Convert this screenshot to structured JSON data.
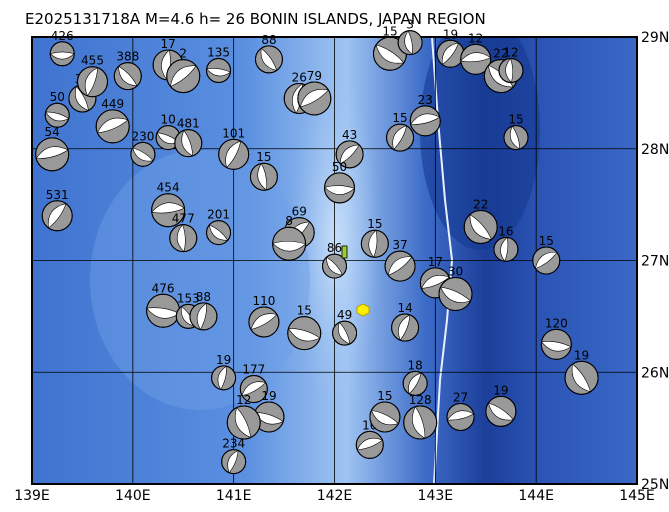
{
  "header": {
    "title": "E2025131718A M=4.6 h= 26 BONIN ISLANDS, JAPAN REGION"
  },
  "map": {
    "xlim": [
      139,
      145
    ],
    "ylim": [
      25,
      29
    ],
    "xticks": [
      {
        "value": 139,
        "label": "139E"
      },
      {
        "value": 140,
        "label": "140E"
      },
      {
        "value": 141,
        "label": "141E"
      },
      {
        "value": 142,
        "label": "142E"
      },
      {
        "value": 143,
        "label": "143E"
      },
      {
        "value": 144,
        "label": "144E"
      },
      {
        "value": 145,
        "label": "145E"
      }
    ],
    "yticks": [
      {
        "value": 25,
        "label": "25N"
      },
      {
        "value": 26,
        "label": "26N"
      },
      {
        "value": 27,
        "label": "27N"
      },
      {
        "value": 28,
        "label": "28N"
      },
      {
        "value": 29,
        "label": "29N"
      }
    ],
    "events": [
      {
        "lon": 139.3,
        "lat": 28.85,
        "label": "426"
      },
      {
        "lon": 139.95,
        "lat": 28.65,
        "label": "388"
      },
      {
        "lon": 140.35,
        "lat": 28.75,
        "label": "17"
      },
      {
        "lon": 140.5,
        "lat": 28.65,
        "label": "2"
      },
      {
        "lon": 140.85,
        "lat": 28.7,
        "label": "135"
      },
      {
        "lon": 141.35,
        "lat": 28.8,
        "label": "88"
      },
      {
        "lon": 141.65,
        "lat": 28.45,
        "label": "26"
      },
      {
        "lon": 141.8,
        "lat": 28.45,
        "label": "79"
      },
      {
        "lon": 139.25,
        "lat": 28.3,
        "label": "50"
      },
      {
        "lon": 139.5,
        "lat": 28.45,
        "label": "38"
      },
      {
        "lon": 139.6,
        "lat": 28.6,
        "label": "455"
      },
      {
        "lon": 139.8,
        "lat": 28.2,
        "label": "449"
      },
      {
        "lon": 140.35,
        "lat": 28.1,
        "label": "10"
      },
      {
        "lon": 140.55,
        "lat": 28.05,
        "label": "481"
      },
      {
        "lon": 141.0,
        "lat": 27.95,
        "label": "101"
      },
      {
        "lon": 139.2,
        "lat": 27.95,
        "label": "54"
      },
      {
        "lon": 140.1,
        "lat": 27.95,
        "label": "230"
      },
      {
        "lon": 141.3,
        "lat": 27.75,
        "label": "15"
      },
      {
        "lon": 139.25,
        "lat": 27.4,
        "label": "531"
      },
      {
        "lon": 140.35,
        "lat": 27.45,
        "label": "454"
      },
      {
        "lon": 140.85,
        "lat": 27.25,
        "label": "201"
      },
      {
        "lon": 140.5,
        "lat": 27.2,
        "label": "477"
      },
      {
        "lon": 141.65,
        "lat": 27.25,
        "label": "69"
      },
      {
        "lon": 141.55,
        "lat": 27.15,
        "label": "8"
      },
      {
        "lon": 142.0,
        "lat": 26.95,
        "label": "86"
      },
      {
        "lon": 142.4,
        "lat": 27.15,
        "label": "15"
      },
      {
        "lon": 142.65,
        "lat": 26.95,
        "label": "37"
      },
      {
        "lon": 140.3,
        "lat": 26.55,
        "label": "476"
      },
      {
        "lon": 140.55,
        "lat": 26.5,
        "label": "153"
      },
      {
        "lon": 140.7,
        "lat": 26.5,
        "label": "88"
      },
      {
        "lon": 141.3,
        "lat": 26.45,
        "label": "110"
      },
      {
        "lon": 141.7,
        "lat": 26.35,
        "label": "15"
      },
      {
        "lon": 142.1,
        "lat": 26.35,
        "label": "49"
      },
      {
        "lon": 142.7,
        "lat": 26.4,
        "label": "14"
      },
      {
        "lon": 143.0,
        "lat": 26.8,
        "label": "17"
      },
      {
        "lon": 143.2,
        "lat": 26.7,
        "label": "30"
      },
      {
        "lon": 143.8,
        "lat": 28.1,
        "label": "15"
      },
      {
        "lon": 142.65,
        "lat": 28.1,
        "label": "15"
      },
      {
        "lon": 142.9,
        "lat": 28.25,
        "label": "23"
      },
      {
        "lon": 142.55,
        "lat": 28.85,
        "label": "15"
      },
      {
        "lon": 142.75,
        "lat": 28.95,
        "label": "3"
      },
      {
        "lon": 143.15,
        "lat": 28.85,
        "label": "19"
      },
      {
        "lon": 143.4,
        "lat": 28.8,
        "label": "12"
      },
      {
        "lon": 143.65,
        "lat": 28.65,
        "label": "22"
      },
      {
        "lon": 143.75,
        "lat": 28.7,
        "label": "12"
      },
      {
        "lon": 142.15,
        "lat": 27.95,
        "label": "43"
      },
      {
        "lon": 142.05,
        "lat": 27.65,
        "label": "50"
      },
      {
        "lon": 143.45,
        "lat": 27.3,
        "label": "22"
      },
      {
        "lon": 143.7,
        "lat": 27.1,
        "label": "16"
      },
      {
        "lon": 144.1,
        "lat": 27.0,
        "label": "15"
      },
      {
        "lon": 144.2,
        "lat": 26.25,
        "label": "120"
      },
      {
        "lon": 144.45,
        "lat": 25.95,
        "label": "19"
      },
      {
        "lon": 140.9,
        "lat": 25.95,
        "label": "19"
      },
      {
        "lon": 141.2,
        "lat": 25.85,
        "label": "177"
      },
      {
        "lon": 141.35,
        "lat": 25.6,
        "label": "19"
      },
      {
        "lon": 141.1,
        "lat": 25.55,
        "label": "12"
      },
      {
        "lon": 141.0,
        "lat": 25.2,
        "label": "234"
      },
      {
        "lon": 142.35,
        "lat": 25.35,
        "label": "10"
      },
      {
        "lon": 142.5,
        "lat": 25.6,
        "label": "15"
      },
      {
        "lon": 142.85,
        "lat": 25.55,
        "label": "128"
      },
      {
        "lon": 142.8,
        "lat": 25.9,
        "label": "18"
      },
      {
        "lon": 143.25,
        "lat": 25.6,
        "label": "27"
      },
      {
        "lon": 143.65,
        "lat": 25.65,
        "label": "19"
      }
    ]
  }
}
